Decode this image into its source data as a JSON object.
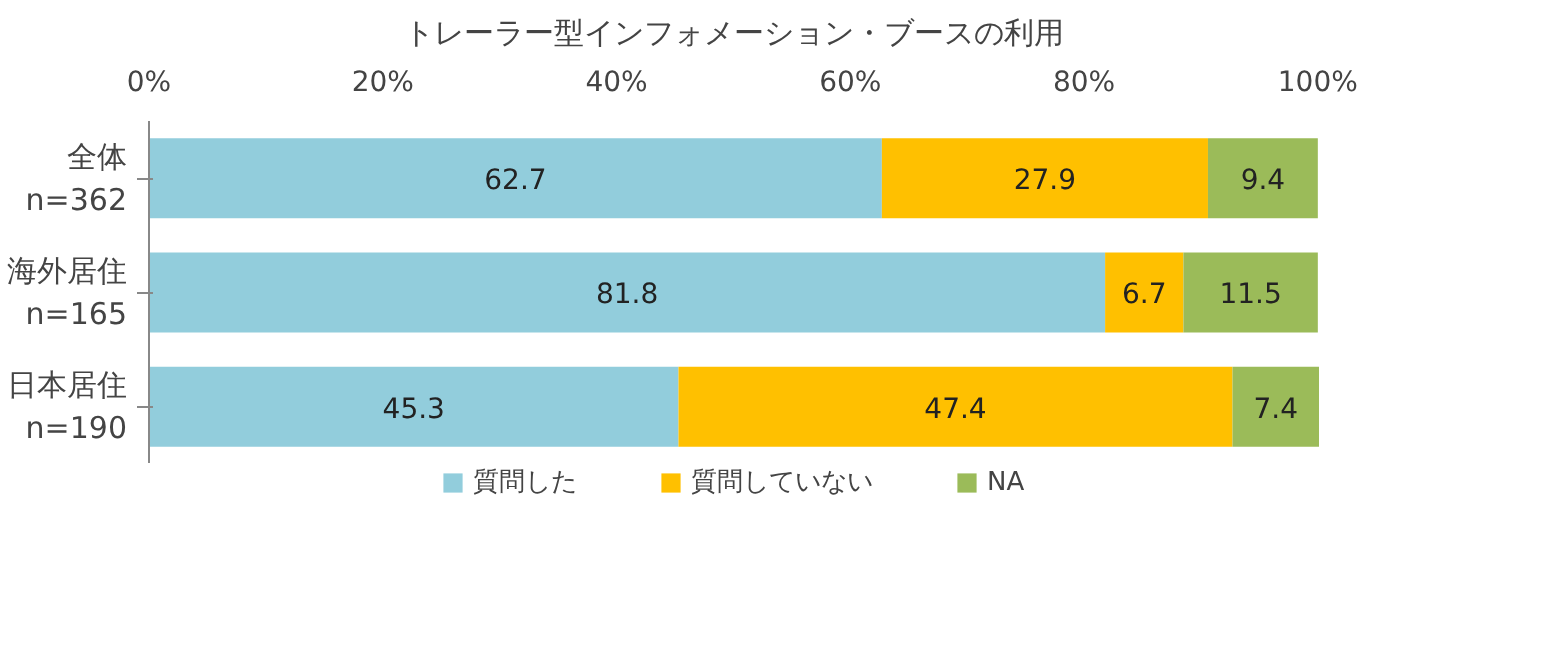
{
  "chart_data": {
    "type": "bar",
    "orientation": "horizontal",
    "stacked": true,
    "title": "トレーラー型インフォメーション・ブースの利用",
    "categories": [
      "全体\nn=362",
      "海外居住\nn=165",
      "日本居住\nn=190"
    ],
    "series": [
      {
        "name": "質問した",
        "color": "#92cddc",
        "values": [
          62.7,
          81.8,
          45.3
        ]
      },
      {
        "name": "質問していない",
        "color": "#ffc000",
        "values": [
          27.9,
          6.7,
          47.4
        ]
      },
      {
        "name": "NA",
        "color": "#9bbb59",
        "values": [
          9.4,
          11.5,
          7.4
        ]
      }
    ],
    "xlim": [
      0,
      100.1
    ],
    "xticks": [
      {
        "value": 0,
        "label": "0%"
      },
      {
        "value": 20,
        "label": "20%"
      },
      {
        "value": 40,
        "label": "40%"
      },
      {
        "value": 60,
        "label": "60%"
      },
      {
        "value": 80,
        "label": "80%"
      },
      {
        "value": 100,
        "label": "100%"
      }
    ],
    "data_labels": true,
    "legend": "bottom",
    "grid": false
  }
}
